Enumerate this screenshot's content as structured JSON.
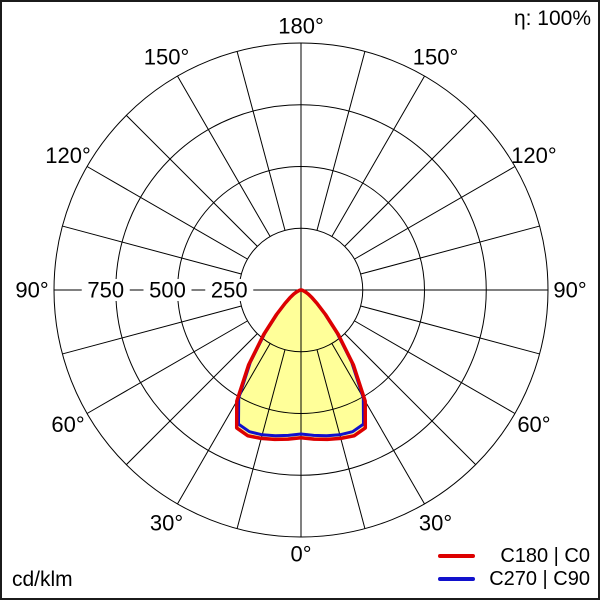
{
  "chart_data": {
    "type": "polar_intensity_distribution",
    "unit_label": "cd/klm",
    "efficiency_label": "η: 100%",
    "radial_ticks": [
      250,
      500,
      750
    ],
    "radial_max": 1000,
    "angle_labels_deg": [
      0,
      30,
      60,
      90,
      120,
      150,
      180
    ],
    "angle_grid_step_deg": 15,
    "grid_color": "#000000",
    "fill_color": "#ffff99",
    "series": [
      {
        "name": "C180 | C0",
        "color": "#dd0000",
        "gamma_deg": [
          0,
          5,
          10,
          15,
          20,
          25,
          30,
          35,
          40,
          45,
          50,
          55,
          60,
          65,
          70,
          75,
          80,
          85,
          90
        ],
        "values_cd_klm": [
          598,
          606,
          614,
          622,
          628,
          616,
          520,
          370,
          235,
          140,
          85,
          55,
          35,
          22,
          13,
          7,
          3,
          1,
          0
        ],
        "symmetric": true
      },
      {
        "name": "C270 | C90",
        "color": "#1111cc",
        "gamma_deg": [
          0,
          5,
          10,
          15,
          20,
          25,
          30,
          35,
          40,
          45,
          50,
          55,
          60,
          65,
          70,
          75,
          80,
          85,
          90
        ],
        "values_cd_klm": [
          592,
          600,
          608,
          616,
          620,
          608,
          512,
          364,
          230,
          137,
          83,
          54,
          34,
          21,
          12,
          6,
          3,
          1,
          0
        ],
        "symmetric": true
      }
    ],
    "legend_position": "bottom-right"
  }
}
